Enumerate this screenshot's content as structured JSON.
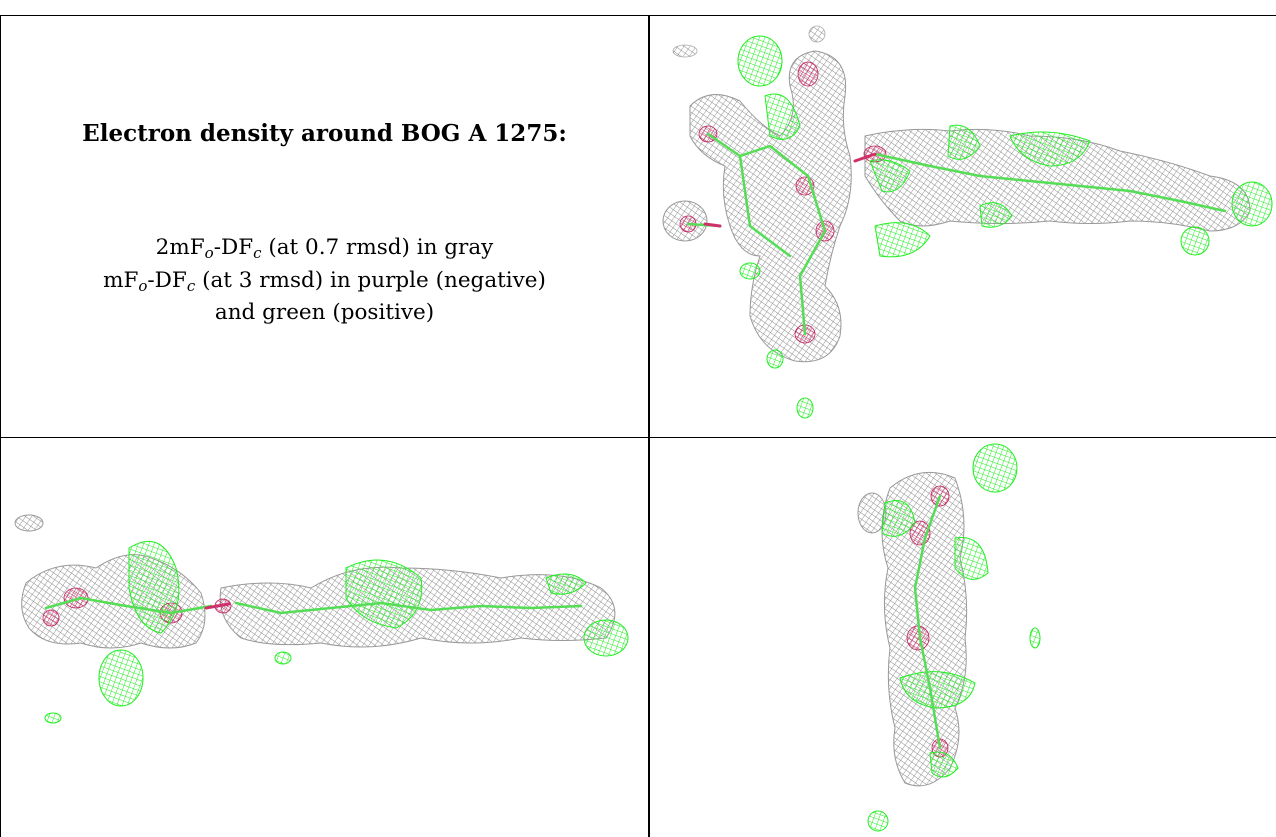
{
  "caption": {
    "title": "Electron density around BOG A 1275:",
    "line1": {
      "a": "2mF",
      "b": "o",
      "c": "-DF",
      "d": "c",
      "e": " (at 0.7 rmsd) in gray"
    },
    "line2": {
      "a": "mF",
      "b": "o",
      "c": "-DF",
      "d": "c",
      "e": " (at 3 rmsd) in purple (negative)"
    },
    "line3": "and green (positive)"
  },
  "colors": {
    "mesh_gray": "#8c8c8c",
    "mesh_green": "#22ee22",
    "mesh_purple": "#d0306a",
    "stick_green": "#55dd55"
  }
}
